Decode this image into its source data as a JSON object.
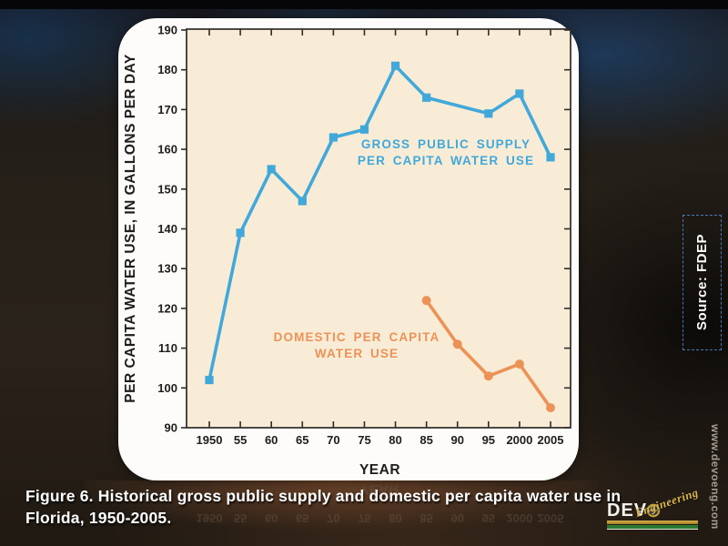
{
  "caption": {
    "line1": "Figure 6. Historical gross public supply and domestic per capita water use in",
    "line2": "Florida, 1950-2005."
  },
  "source_badge": {
    "label": "Source: FDEP"
  },
  "watermark": {
    "url_text": "www.devoeng.com"
  },
  "logo": {
    "wordmark": "DEV",
    "o_icon": "target-crosshair",
    "script": "Engineering"
  },
  "colors": {
    "plot_background": "#f8ecd6",
    "axis": "#2e2c29",
    "gross_public_supply_blue": "#42a8da",
    "domestic_orange": "#ec9257",
    "card_white": "#fdfcfa",
    "badge_border_blue": "#4878b0"
  },
  "chart_data": {
    "type": "line",
    "title": "",
    "xlabel": "YEAR",
    "ylabel": "PER CAPITA WATER USE, IN GALLONS PER DAY",
    "x_ticks": [
      "1950",
      "55",
      "60",
      "65",
      "70",
      "75",
      "80",
      "85",
      "90",
      "95",
      "2000",
      "2005"
    ],
    "x_tick_years": [
      1950,
      1955,
      1960,
      1965,
      1970,
      1975,
      1980,
      1985,
      1990,
      1995,
      2000,
      2005
    ],
    "ylim": [
      90,
      190
    ],
    "y_tick_step": 10,
    "grid": false,
    "legend_position": "inline-annotations",
    "plot_bg": "#f8ecd6",
    "series": [
      {
        "name": "Gross public supply per capita water use",
        "label_lines": [
          "GROSS PUBLIC SUPPLY",
          "PER CAPITA WATER USE"
        ],
        "color": "#42a8da",
        "marker": "square",
        "points": [
          [
            1950,
            102
          ],
          [
            1955,
            139
          ],
          [
            1960,
            155
          ],
          [
            1965,
            147
          ],
          [
            1970,
            163
          ],
          [
            1975,
            165
          ],
          [
            1980,
            181
          ],
          [
            1985,
            173
          ],
          [
            1995,
            169
          ],
          [
            2000,
            174
          ],
          [
            2005,
            158
          ]
        ],
        "note": "no marker at 1990; line runs straight from 1985 to 1995"
      },
      {
        "name": "Domestic per capita water use",
        "label_lines": [
          "DOMESTIC PER CAPITA",
          "WATER USE"
        ],
        "color": "#ec9257",
        "marker": "circle",
        "points": [
          [
            1985,
            122
          ],
          [
            1990,
            111
          ],
          [
            1995,
            103
          ],
          [
            2000,
            106
          ],
          [
            2005,
            95
          ]
        ]
      }
    ]
  }
}
